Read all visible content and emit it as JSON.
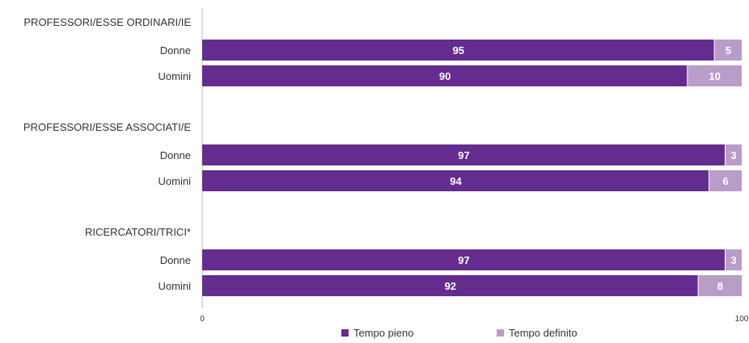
{
  "colors": {
    "full_time": "#652c8f",
    "defined_time": "#b99dc9",
    "axis": "#bfbfbf"
  },
  "legend": {
    "full_time": "Tempo pieno",
    "defined_time": "Tempo definito"
  },
  "chart_data": {
    "type": "bar",
    "orientation": "horizontal",
    "stacked": true,
    "xlim": [
      0,
      100
    ],
    "x_ticks": [
      "0",
      "100"
    ],
    "legend_position": "bottom",
    "groups": [
      {
        "label": "PROFESSORI/ESSE ORDINARI/IE",
        "rows": [
          {
            "label": "Donne",
            "values": [
              95,
              5
            ]
          },
          {
            "label": "Uomini",
            "values": [
              90,
              10
            ]
          }
        ]
      },
      {
        "label": "PROFESSORI/ESSE ASSOCIATI/E",
        "rows": [
          {
            "label": "Donne",
            "values": [
              97,
              3
            ]
          },
          {
            "label": "Uomini",
            "values": [
              94,
              6
            ]
          }
        ]
      },
      {
        "label": "RICERCATORI/TRICI*",
        "rows": [
          {
            "label": "Donne",
            "values": [
              97,
              3
            ]
          },
          {
            "label": "Uomini",
            "values": [
              92,
              8
            ]
          }
        ]
      }
    ],
    "series": [
      {
        "name": "Tempo pieno"
      },
      {
        "name": "Tempo definito"
      }
    ]
  }
}
